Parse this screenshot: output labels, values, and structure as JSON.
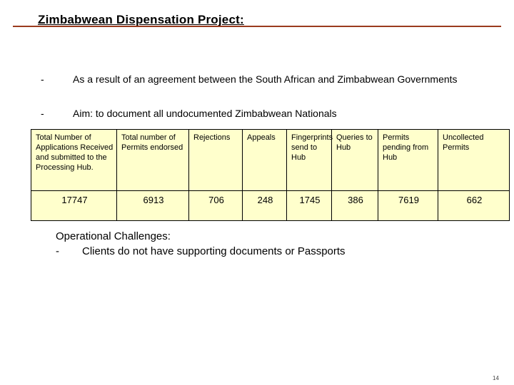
{
  "slide": {
    "title": "Zimbabwean Dispensation Project:",
    "bullets": [
      {
        "dash": "-",
        "text": "As a result of an agreement between the South African and Zimbabwean Governments"
      },
      {
        "dash": "-",
        "text": "Aim: to document all undocumented Zimbabwean Nationals"
      }
    ],
    "table": {
      "headers": [
        "Total Number of Applications Received and submitted to the Processing Hub.",
        "Total number of Permits endorsed",
        "Rejections",
        "Appeals",
        "Fingerprints send to Hub",
        "Queries to Hub",
        "Permits pending from Hub",
        "Uncollected Permits"
      ],
      "values": [
        "17747",
        "6913",
        "706",
        "248",
        "1745",
        "386",
        "7619",
        "662"
      ]
    },
    "challenges": {
      "heading": "Operational Challenges:",
      "items": [
        {
          "dash": "-",
          "text": "Clients do not have supporting documents or Passports"
        }
      ]
    },
    "page_number": "14"
  },
  "colors": {
    "table_fill": "#ffffcc",
    "title_rule": "#9a3b1e"
  }
}
